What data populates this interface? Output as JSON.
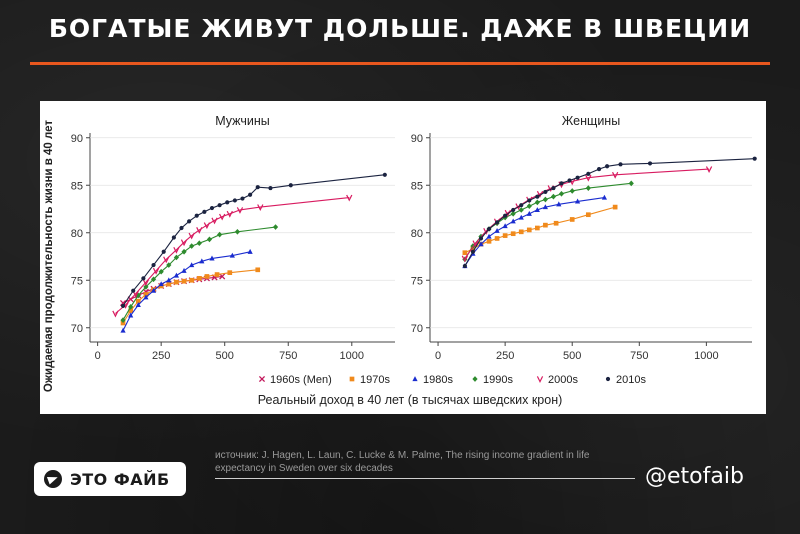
{
  "header": {
    "title": "БОГАТЫЕ ЖИВУТ ДОЛЬШЕ. ДАЖЕ В ШВЕЦИИ"
  },
  "footer": {
    "logo_text": "ЭТО ФАЙБ",
    "source": "источник: J. Hagen, L. Laun, C. Lucke & M. Palme, The rising income gradient in life expectancy in Sweden over six decades",
    "handle": "@etofaib"
  },
  "colors": {
    "accent": "#e8571e",
    "series": [
      "#c2185b",
      "#f08a1c",
      "#1a2ccf",
      "#2e8b2e",
      "#d81b60",
      "#1b2340"
    ]
  },
  "chart_data": {
    "type": "line",
    "ylabel": "Ожидаемая продолжительность жизни в 40 лет",
    "xlabel": "Реальный доход в 40 лет (в тысячах шведских крон)",
    "x_ticks": [
      0,
      250,
      500,
      750,
      1000
    ],
    "y_ticks": [
      70,
      75,
      80,
      85,
      90
    ],
    "xlim": [
      -30,
      1170
    ],
    "ylim": [
      68.5,
      90.5
    ],
    "legend": {
      "position": "bottom",
      "entries": [
        {
          "label": "1960s (Men)",
          "marker": "x"
        },
        {
          "label": "1970s",
          "marker": "square"
        },
        {
          "label": "1980s",
          "marker": "triangle"
        },
        {
          "label": "1990s",
          "marker": "diamond"
        },
        {
          "label": "2000s",
          "marker": "vee"
        },
        {
          "label": "2010s",
          "marker": "circle"
        }
      ]
    },
    "panels": [
      {
        "title": "Мужчины",
        "series": [
          {
            "x": [
              100,
              130,
              160,
              190,
              220,
              250,
              280,
              310,
              340,
              370,
              400,
              430,
              460,
              490
            ],
            "y": [
              72.6,
              73.0,
              73.4,
              73.8,
              74.1,
              74.4,
              74.6,
              74.8,
              74.9,
              75.0,
              75.1,
              75.2,
              75.3,
              75.4
            ]
          },
          {
            "x": [
              100,
              130,
              160,
              190,
              220,
              250,
              280,
              310,
              340,
              370,
              400,
              430,
              470,
              520,
              630
            ],
            "y": [
              70.5,
              71.8,
              72.8,
              73.5,
              74.0,
              74.4,
              74.6,
              74.8,
              74.9,
              75.0,
              75.2,
              75.4,
              75.6,
              75.8,
              76.1
            ]
          },
          {
            "x": [
              100,
              130,
              160,
              190,
              220,
              250,
              280,
              310,
              340,
              370,
              410,
              450,
              530,
              600
            ],
            "y": [
              69.7,
              71.3,
              72.4,
              73.2,
              73.9,
              74.6,
              75.0,
              75.5,
              76.0,
              76.6,
              77.0,
              77.3,
              77.6,
              78.0
            ]
          },
          {
            "x": [
              100,
              130,
              160,
              190,
              220,
              250,
              280,
              310,
              340,
              370,
              400,
              440,
              480,
              550,
              700
            ],
            "y": [
              70.8,
              72.2,
              73.4,
              74.3,
              75.1,
              75.9,
              76.6,
              77.4,
              78.0,
              78.6,
              78.9,
              79.3,
              79.8,
              80.1,
              80.6
            ]
          },
          {
            "x": [
              70,
              110,
              150,
              190,
              230,
              270,
              310,
              340,
              370,
              400,
              430,
              460,
              490,
              520,
              560,
              640,
              990
            ],
            "y": [
              71.5,
              72.4,
              73.6,
              74.8,
              76.0,
              77.2,
              78.2,
              79.0,
              79.7,
              80.3,
              80.8,
              81.3,
              81.7,
              82.0,
              82.4,
              82.7,
              83.7
            ]
          },
          {
            "x": [
              100,
              140,
              180,
              220,
              260,
              300,
              330,
              360,
              390,
              420,
              450,
              480,
              510,
              540,
              570,
              600,
              630,
              680,
              760,
              1130
            ],
            "y": [
              72.3,
              73.9,
              75.2,
              76.6,
              78.0,
              79.5,
              80.5,
              81.2,
              81.8,
              82.2,
              82.6,
              82.9,
              83.2,
              83.4,
              83.6,
              84.0,
              84.8,
              84.7,
              85.0,
              86.1
            ]
          }
        ]
      },
      {
        "title": "Женщины",
        "series": [
          {
            "x": [],
            "y": []
          },
          {
            "x": [
              100,
              130,
              160,
              190,
              220,
              250,
              280,
              310,
              340,
              370,
              400,
              440,
              500,
              560,
              660
            ],
            "y": [
              77.9,
              78.3,
              78.8,
              79.1,
              79.4,
              79.7,
              79.9,
              80.1,
              80.3,
              80.5,
              80.8,
              81.0,
              81.4,
              81.9,
              82.7
            ]
          },
          {
            "x": [
              100,
              130,
              160,
              190,
              220,
              250,
              280,
              310,
              340,
              370,
              400,
              450,
              520,
              620
            ],
            "y": [
              76.5,
              77.8,
              78.8,
              79.6,
              80.2,
              80.7,
              81.2,
              81.6,
              82.0,
              82.4,
              82.7,
              83.0,
              83.3,
              83.7
            ]
          },
          {
            "x": [
              100,
              130,
              160,
              190,
              220,
              250,
              280,
              310,
              340,
              370,
              400,
              430,
              460,
              500,
              560,
              720
            ],
            "y": [
              77.2,
              78.6,
              79.6,
              80.4,
              81.0,
              81.6,
              82.0,
              82.4,
              82.8,
              83.2,
              83.5,
              83.8,
              84.1,
              84.4,
              84.7,
              85.2
            ]
          },
          {
            "x": [
              100,
              140,
              180,
              220,
              260,
              300,
              340,
              380,
              420,
              460,
              500,
              560,
              660,
              1010
            ],
            "y": [
              77.3,
              78.9,
              80.2,
              81.2,
              82.1,
              82.8,
              83.5,
              84.1,
              84.7,
              85.1,
              85.4,
              85.8,
              86.1,
              86.7
            ]
          },
          {
            "x": [
              100,
              130,
              160,
              190,
              220,
              250,
              280,
              310,
              340,
              370,
              400,
              430,
              460,
              490,
              520,
              560,
              600,
              630,
              680,
              790,
              1180
            ],
            "y": [
              76.5,
              78.0,
              79.4,
              80.4,
              81.1,
              81.8,
              82.4,
              82.9,
              83.4,
              83.8,
              84.3,
              84.7,
              85.2,
              85.5,
              85.8,
              86.2,
              86.7,
              87.0,
              87.2,
              87.3,
              87.8
            ]
          }
        ]
      }
    ]
  }
}
